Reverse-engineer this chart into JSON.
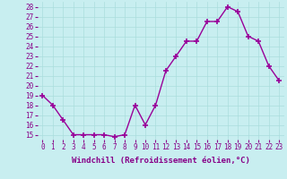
{
  "x": [
    0,
    1,
    2,
    3,
    4,
    5,
    6,
    7,
    8,
    9,
    10,
    11,
    12,
    13,
    14,
    15,
    16,
    17,
    18,
    19,
    20,
    21,
    22,
    23
  ],
  "y": [
    19,
    18,
    16.5,
    15,
    15,
    15,
    15,
    14.8,
    15,
    18,
    16,
    18,
    21.5,
    23,
    24.5,
    24.5,
    26.5,
    26.5,
    28,
    27.5,
    25,
    24.5,
    22,
    20.5
  ],
  "line_color": "#990099",
  "marker": "+",
  "marker_size": 4,
  "marker_linewidth": 1.2,
  "background_color": "#c8eef0",
  "grid_color": "#aadddd",
  "xlabel": "Windchill (Refroidissement éolien,°C)",
  "xlabel_color": "#880088",
  "ylim_min": 14.5,
  "ylim_max": 28.5,
  "xlim_min": -0.5,
  "xlim_max": 23.5,
  "yticks": [
    15,
    16,
    17,
    18,
    19,
    20,
    21,
    22,
    23,
    24,
    25,
    26,
    27,
    28
  ],
  "xtick_labels": [
    "0",
    "1",
    "2",
    "3",
    "4",
    "5",
    "6",
    "7",
    "8",
    "9",
    "10",
    "11",
    "12",
    "13",
    "14",
    "15",
    "16",
    "17",
    "18",
    "19",
    "20",
    "21",
    "22",
    "23"
  ],
  "tick_color": "#880088",
  "tick_fontsize": 5.5,
  "xlabel_fontsize": 6.5,
  "line_width": 1.0
}
